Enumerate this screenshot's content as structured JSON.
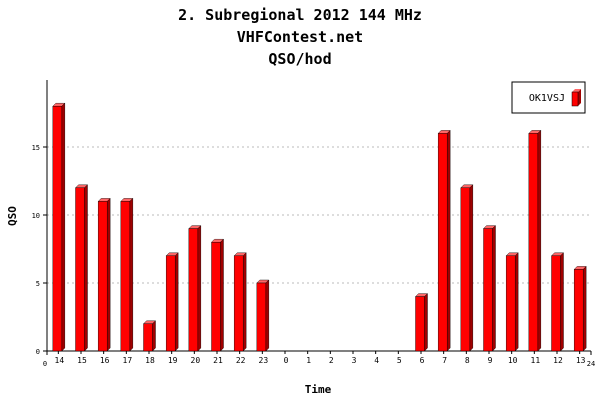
{
  "chart_data": {
    "type": "bar",
    "titles": [
      "2. Subregional 2012 144 MHz",
      "VHFContest.net",
      "QSO/hod"
    ],
    "xlabel": "Time",
    "ylabel": "QSO",
    "x_axis_start_label": "0",
    "x_axis_end_label": "24",
    "categories": [
      "14",
      "15",
      "16",
      "17",
      "18",
      "19",
      "20",
      "21",
      "22",
      "23",
      "0",
      "1",
      "2",
      "3",
      "4",
      "5",
      "6",
      "7",
      "8",
      "9",
      "10",
      "11",
      "12",
      "13"
    ],
    "series": [
      {
        "name": "OK1VSJ",
        "values": [
          18,
          12,
          11,
          11,
          2,
          7,
          9,
          8,
          7,
          5,
          0,
          0,
          0,
          0,
          0,
          0,
          4,
          16,
          12,
          9,
          7,
          16,
          7,
          6
        ]
      }
    ],
    "ylim": [
      0,
      20
    ],
    "yticks": [
      0,
      5,
      10,
      15
    ],
    "grid": true,
    "legend_position": "top-right",
    "colors": {
      "bar_front": "#ff0000",
      "bar_side": "#a00000",
      "bar_top": "#ff6666",
      "grid": "#bbbbbb"
    }
  }
}
